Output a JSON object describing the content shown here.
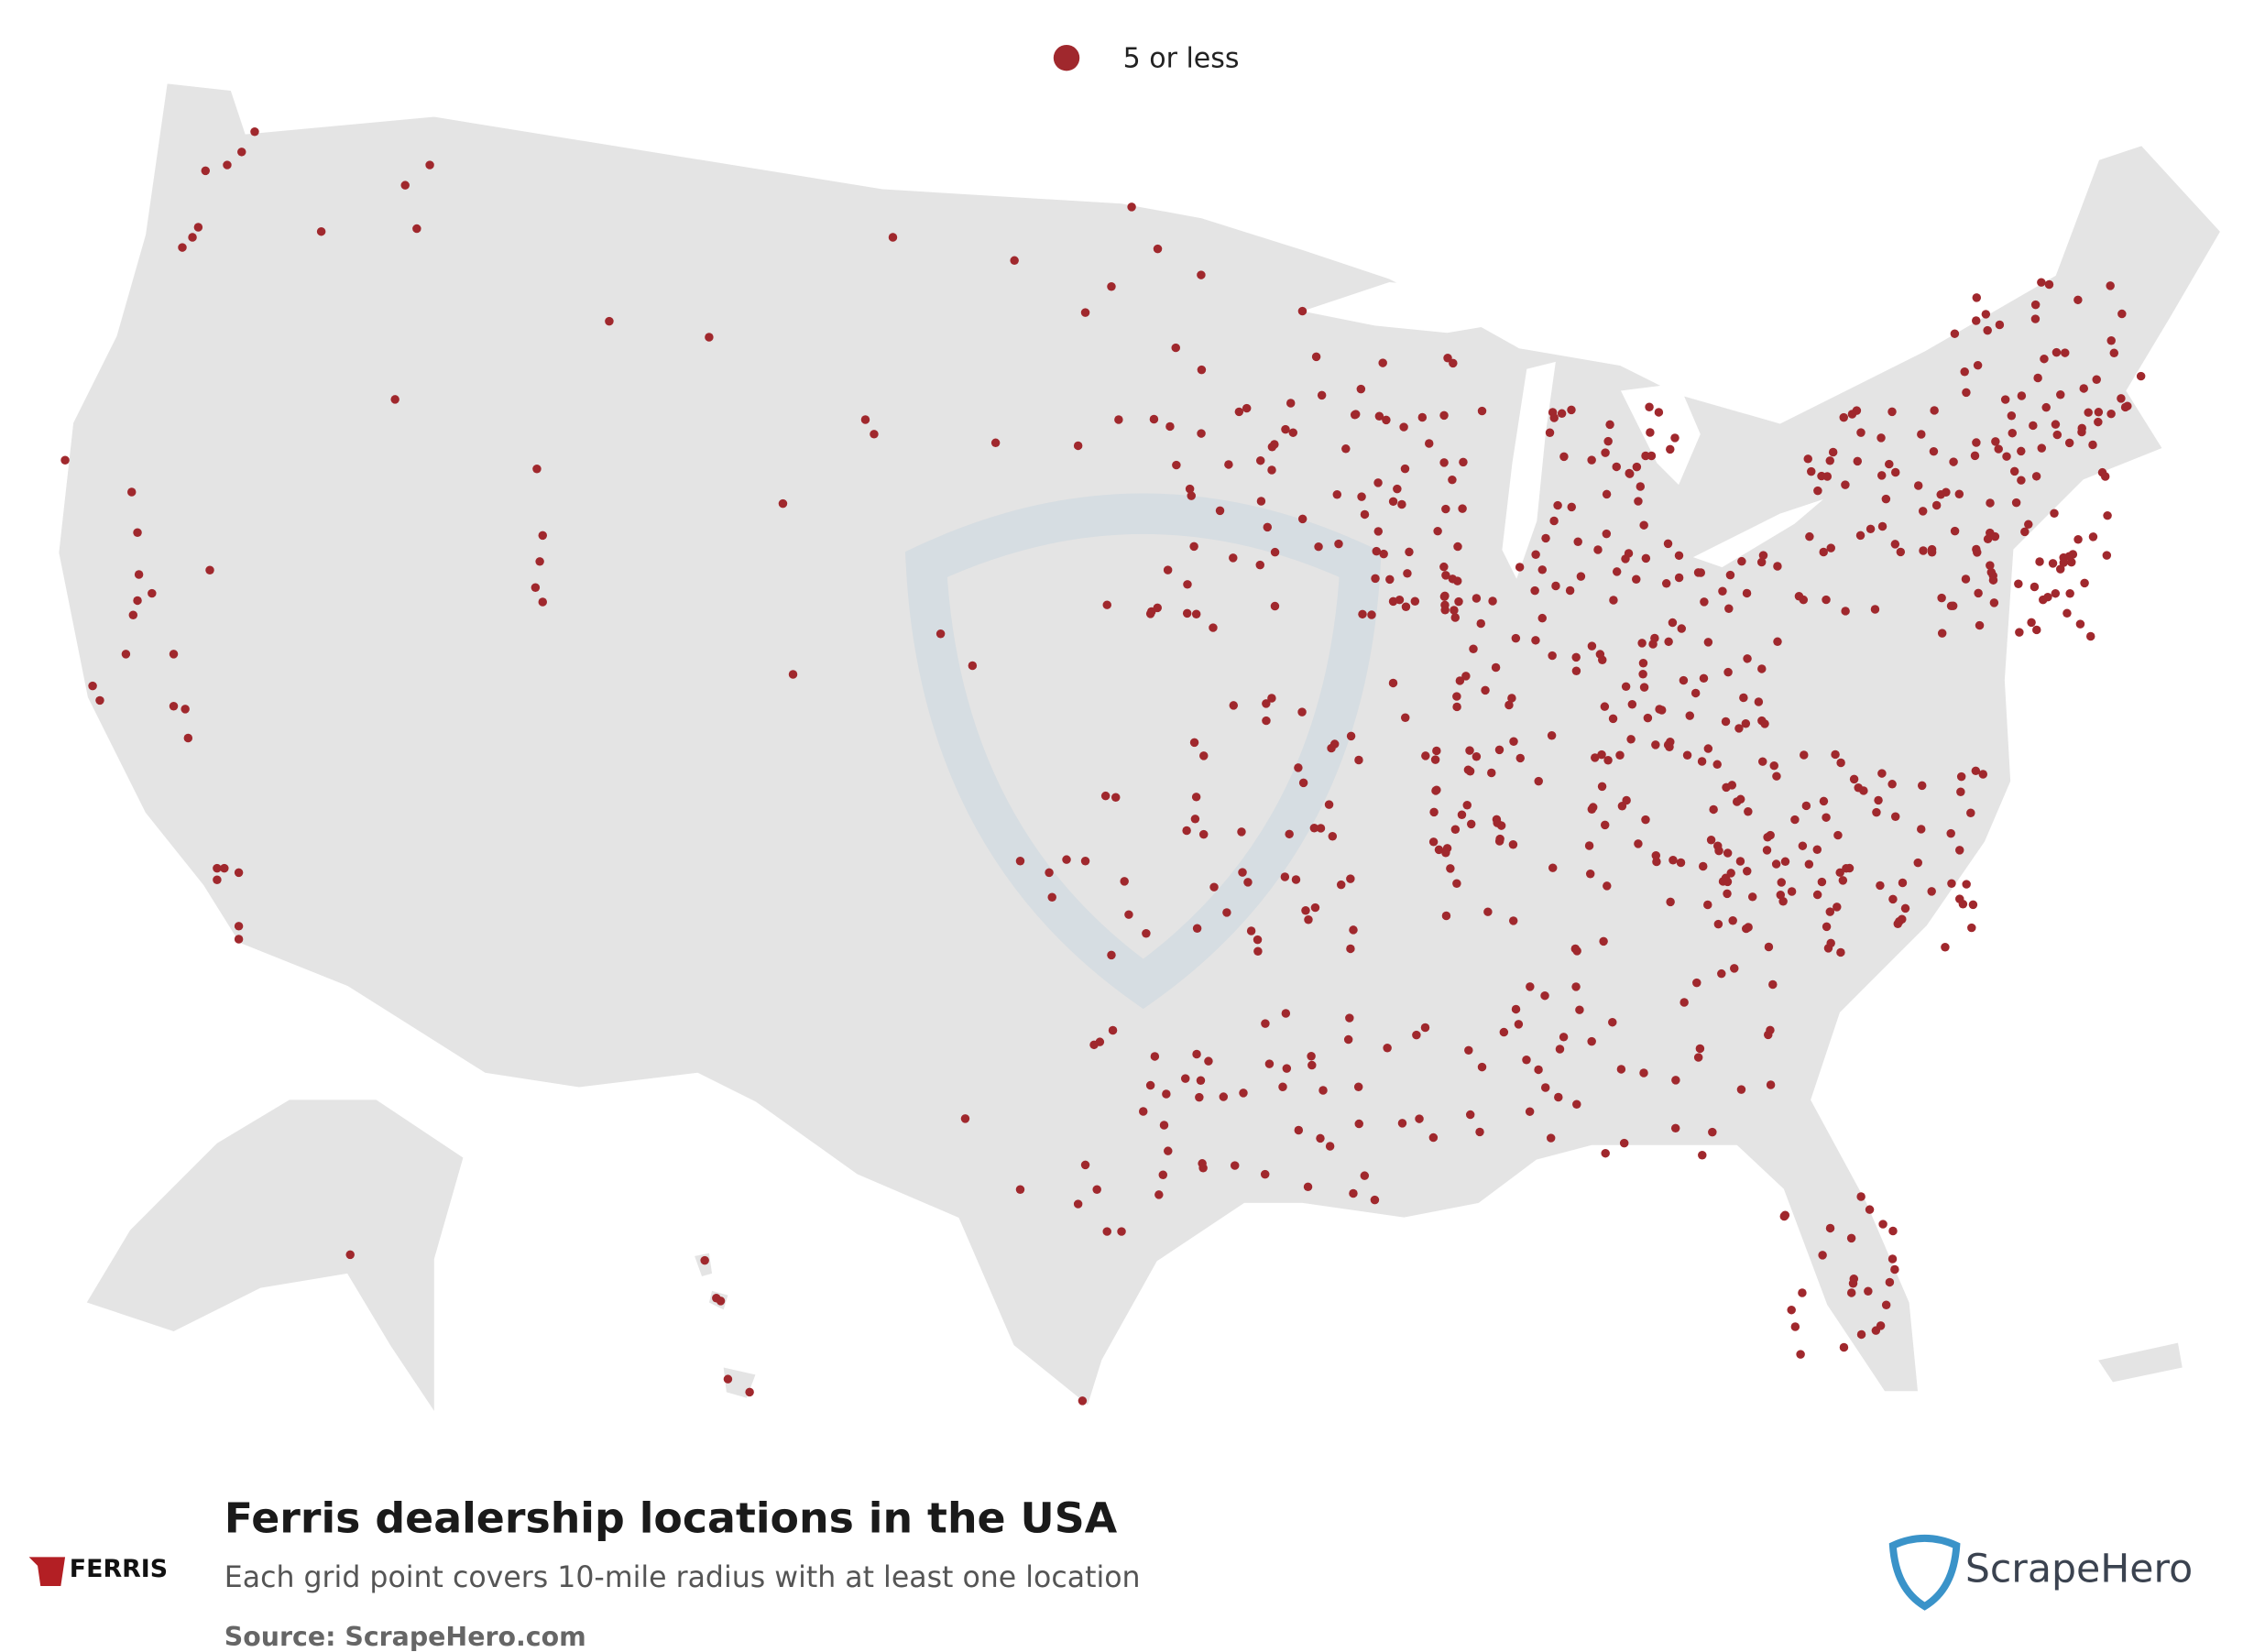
{
  "legend": {
    "label": "5 or less",
    "color": "#a0282d"
  },
  "title": "Ferris dealership locations in the USA",
  "subtitle": "Each grid point covers 10-mile radius with at least one location",
  "source": "Source: ScrapeHero.com",
  "logos": {
    "brand": "FERRIS",
    "publisher": "ScrapeHero"
  }
}
